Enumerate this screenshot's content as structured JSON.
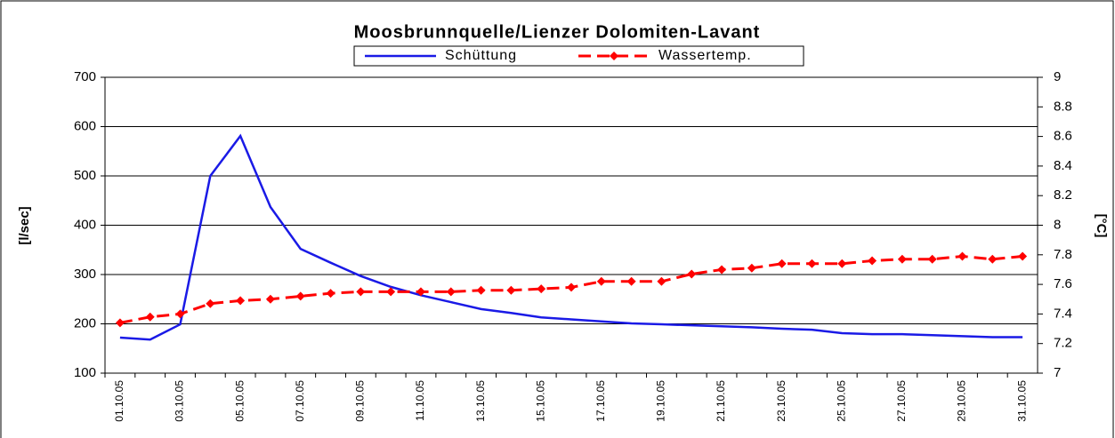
{
  "chart_data": {
    "type": "line",
    "title": "Moosbrunnquelle/Lienzer Dolomiten-Lavant",
    "y_label": "[l/sec]",
    "y2_label": "[°C]",
    "categories": [
      "01.10.05",
      null,
      "03.10.05",
      null,
      "05.10.05",
      null,
      "07.10.05",
      null,
      "09.10.05",
      null,
      "11.10.05",
      null,
      "13.10.05",
      null,
      "15.10.05",
      null,
      "17.10.05",
      null,
      "19.10.05",
      null,
      "21.10.05",
      null,
      "23.10.05",
      null,
      "25.10.05",
      null,
      "27.10.05",
      null,
      "29.10.05",
      null,
      "31.10.05"
    ],
    "series": [
      {
        "name": "Schüttung",
        "color": "#1a1ae6",
        "values": [
          172,
          168,
          199,
          500,
          581,
          437,
          352,
          324,
          297,
          275,
          258,
          244,
          230,
          222,
          213,
          209,
          205,
          201,
          199,
          197,
          195,
          193,
          190,
          188,
          181,
          179,
          179,
          177,
          175,
          173,
          173
        ]
      },
      {
        "name": "Wassertemp.",
        "color": "#ff0000",
        "axis": "y2",
        "dashed": true,
        "marker": "diamond",
        "values": [
          7.34,
          7.38,
          7.4,
          7.47,
          7.49,
          7.5,
          7.52,
          7.54,
          7.55,
          7.55,
          7.55,
          7.55,
          7.56,
          7.56,
          7.57,
          7.58,
          7.62,
          7.62,
          7.62,
          7.67,
          7.7,
          7.71,
          7.74,
          7.74,
          7.74,
          7.76,
          7.77,
          7.77,
          7.79,
          7.77,
          7.79
        ]
      }
    ],
    "ylim": [
      100,
      700
    ],
    "yticks": [
      100,
      200,
      300,
      400,
      500,
      600,
      700
    ],
    "y2lim": [
      7,
      9
    ],
    "y2ticks": [
      7,
      7.2,
      7.4,
      7.6,
      7.8,
      8,
      8.2,
      8.4,
      8.6,
      8.8,
      9
    ],
    "grid": true,
    "legend": "top"
  }
}
